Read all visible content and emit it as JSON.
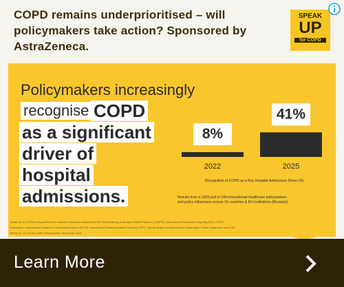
{
  "header": {
    "title": "COPD remains underprioritised – will policymakers take action? Sponsored by AstraZeneca.",
    "logo": [
      "SPEAK",
      "UP",
      "for COPD"
    ]
  },
  "panel": {
    "headline_plain": [
      "Policymakers increasingly",
      "recognise"
    ],
    "headline_bold": [
      "COPD",
      "as a significant",
      "driver of",
      "hospital",
      "admissions."
    ],
    "chart": {
      "type": "bar",
      "categories": [
        "2022",
        "2025"
      ],
      "values": [
        8,
        41
      ],
      "value_labels": [
        "8%",
        "41%"
      ],
      "color": "#2b2b2b",
      "caption": "Recognition of COPD as a Key Hospital Admissions Driver (%)",
      "note": "Results from a 2025 poll of 149 international healthcare policymakers and policy influencers across 15 countries & EU institutions (Brussels)"
    },
    "fine_print": [
      "Speak Up for COPD is supported by a number of partners comprised of the Global Allergy & Airways Patient Platform (GAAPP), International Federation of Ageing (IFA), COPD",
      "Foundation, International Coalition of Respiratory Nurses (ICRN), International Pharmaceutical Federation (FIP), with funding from AstraZeneca, Boehringer, Chiesi, Regeneron and GSK.",
      "Veeva ID: Z4-74145 | Date of Preparation: November 2025"
    ]
  },
  "button": {
    "label": "Learn More"
  }
}
